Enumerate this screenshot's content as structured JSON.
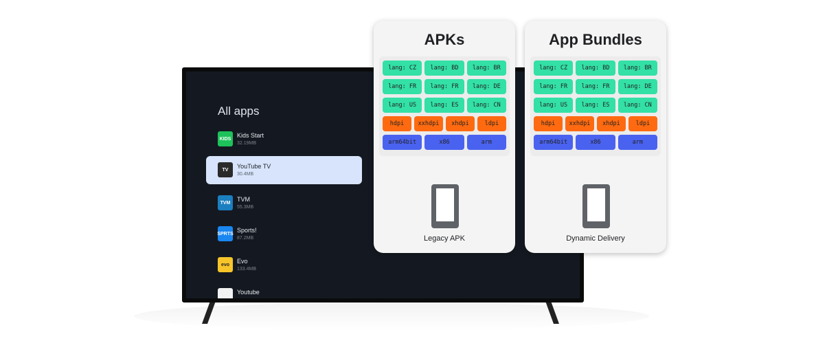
{
  "tv": {
    "title": "All apps",
    "apps": [
      {
        "name": "Kids Start",
        "size": "32.19MB",
        "icon_color": "#1ec25a",
        "icon_text": "KIDS"
      },
      {
        "name": "YouTube TV",
        "size": "30.4MB",
        "icon_color": "#2a2a2a",
        "icon_text": "TV"
      },
      {
        "name": "TVM",
        "size": "55.3MB",
        "icon_color": "#1b7fc0",
        "icon_text": "TVM"
      },
      {
        "name": "Sports!",
        "size": "87.2MB",
        "icon_color": "#1a86f0",
        "icon_text": "SPRTS"
      },
      {
        "name": "Evo",
        "size": "133.4MB",
        "icon_color": "#f7c52a",
        "icon_text": "evo"
      },
      {
        "name": "Youtube",
        "size": "",
        "icon_color": "#f2f2f2",
        "icon_text": ""
      }
    ]
  },
  "colors": {
    "lang": "#33e0a5",
    "density": "#ff6a10",
    "abi": "#4a62f0"
  },
  "cards": [
    {
      "title": "APKs",
      "label": "Legacy APK",
      "rows": [
        [
          "lang: CZ",
          "lang: BD",
          "lang: BR"
        ],
        [
          "lang: FR",
          "lang: FR",
          "lang: DE"
        ],
        [
          "lang: US",
          "lang: ES",
          "lang: CN"
        ],
        [
          "hdpi",
          "xxhdpi",
          "xhdpi",
          "ldpi"
        ],
        [
          "arm64bit",
          "x86",
          "arm"
        ]
      ]
    },
    {
      "title": "App Bundles",
      "label": "Dynamic Delivery",
      "rows": [
        [
          "lang: CZ",
          "lang: BD",
          "lang: BR"
        ],
        [
          "lang: FR",
          "lang: FR",
          "lang: DE"
        ],
        [
          "lang: US",
          "lang: ES",
          "lang: CN"
        ],
        [
          "hdpi",
          "xxhdpi",
          "xhdpi",
          "ldpi"
        ],
        [
          "arm64bit",
          "x86",
          "arm"
        ]
      ]
    }
  ]
}
